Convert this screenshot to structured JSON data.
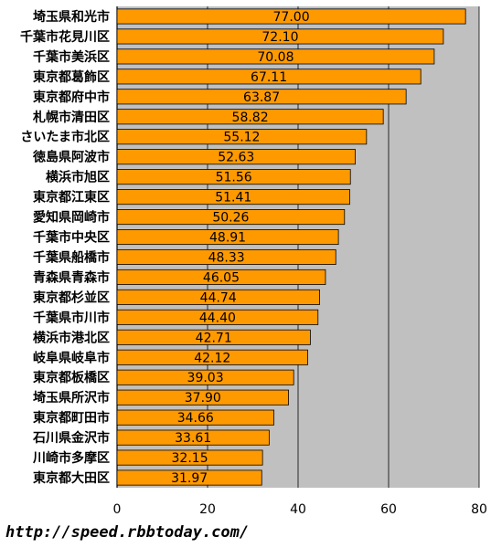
{
  "footer": {
    "url": "http://speed.rbbtoday.com/"
  },
  "colors": {
    "plot_bg": "#c0c0c0",
    "bar_fill": "#ff9900",
    "bar_stroke": "#000000",
    "grid": "#000000"
  },
  "chart_data": {
    "type": "bar",
    "orientation": "horizontal",
    "categories": [
      "埼玉県和光市",
      "千葉市花見川区",
      "千葉市美浜区",
      "東京都葛飾区",
      "東京都府中市",
      "札幌市清田区",
      "さいたま市北区",
      "徳島県阿波市",
      "横浜市旭区",
      "東京都江東区",
      "愛知県岡崎市",
      "千葉市中央区",
      "千葉県船橋市",
      "青森県青森市",
      "東京都杉並区",
      "千葉県市川市",
      "横浜市港北区",
      "岐阜県岐阜市",
      "東京都板橋区",
      "埼玉県所沢市",
      "東京都町田市",
      "石川県金沢市",
      "川崎市多摩区",
      "東京都大田区"
    ],
    "values": [
      77.0,
      72.1,
      70.08,
      67.11,
      63.87,
      58.82,
      55.12,
      52.63,
      51.56,
      51.41,
      50.26,
      48.91,
      48.33,
      46.05,
      44.74,
      44.4,
      42.71,
      42.12,
      39.03,
      37.9,
      34.66,
      33.61,
      32.15,
      31.97
    ],
    "value_labels": [
      "77.00",
      "72.10",
      "70.08",
      "67.11",
      "63.87",
      "58.82",
      "55.12",
      "52.63",
      "51.56",
      "51.41",
      "50.26",
      "48.91",
      "48.33",
      "46.05",
      "44.74",
      "44.40",
      "42.71",
      "42.12",
      "39.03",
      "37.90",
      "34.66",
      "33.61",
      "32.15",
      "31.97"
    ],
    "xlim": [
      0,
      80
    ],
    "xticks": [
      "0",
      "20",
      "40",
      "60",
      "80"
    ],
    "xtick_values": [
      0,
      20,
      40,
      60,
      80
    ],
    "grid": true
  }
}
